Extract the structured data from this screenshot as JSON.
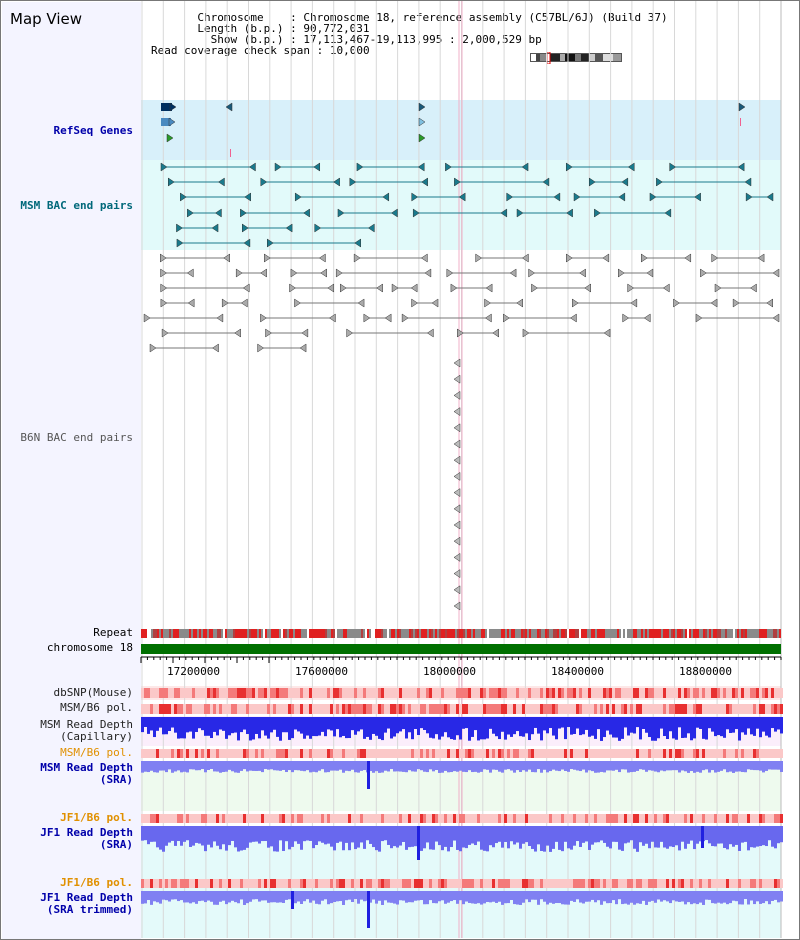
{
  "app": {
    "title": "Map View"
  },
  "info": {
    "chromosome_key": "Chromosome",
    "chromosome_val": "Chromosome 18, reference assembly (C57BL/6J) (Build 37)",
    "length_key": "Length (b.p.)",
    "length_val": "90,772,031",
    "show_key": "Show (b.p.)",
    "show_val": "17,113,467-19,113,995 : 2,000,529 bp",
    "coverage_key": "Read coverage check span",
    "coverage_val": "10,000"
  },
  "tracks": {
    "refseq": "RefSeq Genes",
    "msm_bac": "MSM BAC end pairs",
    "b6n_bac": "B6N BAC end pairs",
    "repeat": "Repeat",
    "chromosome": "chromosome 18",
    "dbsnp": "dbSNP(Mouse)",
    "msm_b6_pol_1": "MSM/B6 pol.",
    "msm_depth_cap_1": "MSM Read Depth",
    "msm_depth_cap_2": "(Capillary)",
    "msm_b6_pol_2": "MSM/B6 pol.",
    "msm_depth_sra_1": "MSM Read Depth",
    "msm_depth_sra_2": "(SRA)",
    "jf1_b6_pol_1": "JF1/B6 pol.",
    "jf1_depth_sra_1": "JF1 Read Depth",
    "jf1_depth_sra_2": "(SRA)",
    "jf1_b6_pol_2": "JF1/B6 pol.",
    "jf1_depth_trim_1": "JF1 Read Depth",
    "jf1_depth_trim_2": "(SRA trimmed)"
  },
  "axis": {
    "ticks": [
      "17200000",
      "17600000",
      "18000000",
      "18400000",
      "18800000"
    ]
  },
  "colors": {
    "refseq_bg": "#d8f0fa",
    "msm_bg": "#e2fafa",
    "msm_feature": "#1a7a8c",
    "chromosome_bar": "#007000",
    "repeat_red": "#e02020",
    "label_blue": "#0000aa",
    "label_teal": "#00687a",
    "label_orange": "#e09000",
    "depth_blue": "#2020e0",
    "depth_light": "#7070f0"
  }
}
